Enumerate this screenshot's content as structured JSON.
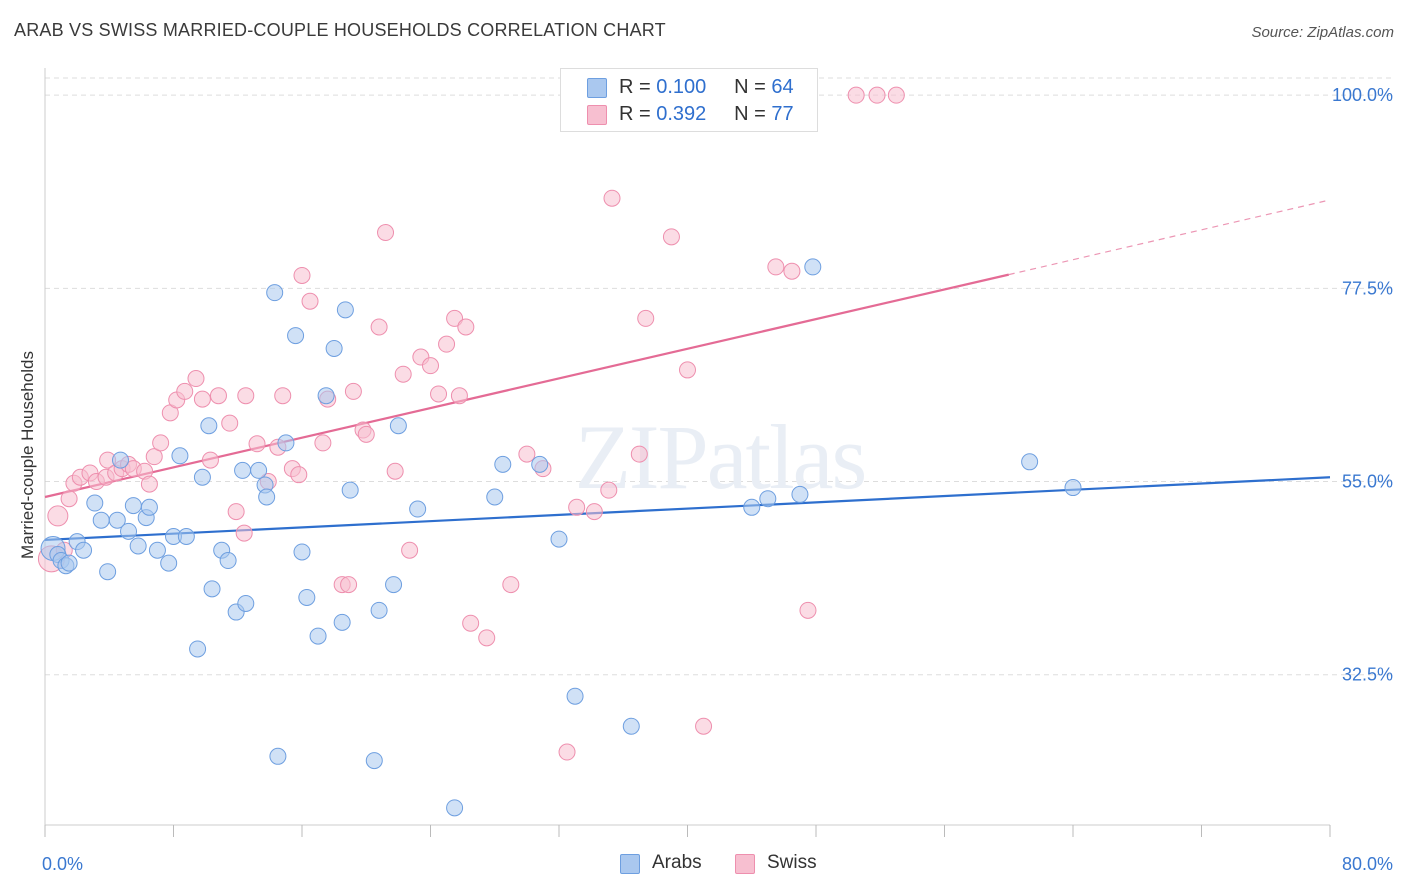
{
  "title": "ARAB VS SWISS MARRIED-COUPLE HOUSEHOLDS CORRELATION CHART",
  "source": "Source: ZipAtlas.com",
  "watermark": "ZIPatlas",
  "legend": {
    "arabs": {
      "r_label": "R =",
      "r_value": "0.100",
      "n_label": "N =",
      "n_value": "64"
    },
    "swiss": {
      "r_label": "R =",
      "r_value": "0.392",
      "n_label": "N =",
      "n_value": "77"
    }
  },
  "bottom_legend": {
    "arabs": "Arabs",
    "swiss": "Swiss"
  },
  "colors": {
    "arabs_fill": "#aac8ef",
    "arabs_stroke": "#6e9fe0",
    "arabs_line": "#2e6fce",
    "swiss_fill": "#f7bfd0",
    "swiss_stroke": "#ee8fae",
    "swiss_line": "#e46b95",
    "axis_label": "#3a78d0",
    "grid": "#dddddd"
  },
  "chart_data": {
    "type": "scatter",
    "title": "ARAB VS SWISS MARRIED-COUPLE HOUSEHOLDS CORRELATION CHART",
    "xlabel": "",
    "ylabel": "Married-couple Households",
    "xlim": [
      0,
      80
    ],
    "ylim": [
      15,
      102
    ],
    "x_tick_labels": [
      "0.0%",
      "80.0%"
    ],
    "y_ticks": [
      32.5,
      55.0,
      77.5,
      100.0
    ],
    "y_tick_labels": [
      "32.5%",
      "55.0%",
      "77.5%",
      "100.0%"
    ],
    "grid": true,
    "legend_position": "top-center",
    "series": [
      {
        "name": "Arabs",
        "r": 0.1,
        "n": 64,
        "trend": {
          "x": [
            0,
            80
          ],
          "y": [
            48.2,
            55.5
          ]
        },
        "points": [
          [
            0.5,
            47.2
          ],
          [
            0.8,
            46.5
          ],
          [
            1.0,
            45.8
          ],
          [
            1.3,
            45.2
          ],
          [
            1.5,
            45.5
          ],
          [
            2.0,
            48.0
          ],
          [
            2.4,
            47.0
          ],
          [
            3.1,
            52.5
          ],
          [
            3.5,
            50.5
          ],
          [
            3.9,
            44.5
          ],
          [
            4.5,
            50.5
          ],
          [
            4.7,
            57.5
          ],
          [
            5.2,
            49.2
          ],
          [
            5.5,
            52.2
          ],
          [
            5.8,
            47.5
          ],
          [
            6.3,
            50.8
          ],
          [
            6.5,
            52.0
          ],
          [
            7.0,
            47.0
          ],
          [
            7.7,
            45.5
          ],
          [
            8.0,
            48.6
          ],
          [
            8.4,
            58.0
          ],
          [
            8.8,
            48.6
          ],
          [
            9.5,
            35.5
          ],
          [
            9.8,
            55.5
          ],
          [
            10.2,
            61.5
          ],
          [
            10.4,
            42.5
          ],
          [
            11.0,
            47.0
          ],
          [
            11.4,
            45.8
          ],
          [
            11.9,
            39.8
          ],
          [
            12.3,
            56.3
          ],
          [
            12.5,
            40.8
          ],
          [
            13.3,
            56.3
          ],
          [
            13.7,
            54.6
          ],
          [
            13.8,
            53.2
          ],
          [
            14.3,
            77.0
          ],
          [
            14.5,
            23.0
          ],
          [
            15.0,
            59.5
          ],
          [
            15.6,
            72.0
          ],
          [
            16.0,
            46.8
          ],
          [
            16.3,
            41.5
          ],
          [
            17.0,
            37.0
          ],
          [
            17.5,
            65.0
          ],
          [
            18.0,
            70.5
          ],
          [
            18.5,
            38.6
          ],
          [
            18.7,
            75.0
          ],
          [
            19.0,
            54.0
          ],
          [
            20.5,
            22.5
          ],
          [
            20.8,
            40.0
          ],
          [
            21.7,
            43.0
          ],
          [
            22.0,
            61.5
          ],
          [
            23.2,
            51.8
          ],
          [
            28.0,
            53.2
          ],
          [
            28.5,
            57.0
          ],
          [
            30.8,
            57.0
          ],
          [
            32.0,
            48.3
          ],
          [
            33.0,
            30.0
          ],
          [
            36.5,
            26.5
          ],
          [
            44.0,
            52.0
          ],
          [
            45.0,
            53.0
          ],
          [
            47.0,
            53.5
          ],
          [
            47.8,
            80.0
          ],
          [
            61.3,
            57.3
          ],
          [
            64.0,
            54.3
          ],
          [
            25.5,
            17.0
          ]
        ]
      },
      {
        "name": "Swiss",
        "r": 0.392,
        "n": 77,
        "trend": {
          "x": [
            0,
            60
          ],
          "y": [
            53.2,
            79.1
          ],
          "dashed_to": {
            "x": 80,
            "y": 87.8
          }
        },
        "points": [
          [
            0.4,
            46.0
          ],
          [
            0.8,
            51.0
          ],
          [
            1.2,
            47.0
          ],
          [
            1.5,
            53.0
          ],
          [
            1.8,
            54.8
          ],
          [
            2.2,
            55.5
          ],
          [
            2.8,
            56.0
          ],
          [
            3.2,
            55.0
          ],
          [
            3.8,
            55.5
          ],
          [
            3.9,
            57.5
          ],
          [
            4.4,
            56.0
          ],
          [
            4.8,
            56.5
          ],
          [
            5.2,
            57.0
          ],
          [
            5.5,
            56.5
          ],
          [
            6.2,
            56.2
          ],
          [
            6.5,
            54.7
          ],
          [
            6.8,
            57.9
          ],
          [
            7.2,
            59.5
          ],
          [
            7.8,
            63.0
          ],
          [
            8.2,
            64.5
          ],
          [
            8.7,
            65.5
          ],
          [
            9.4,
            67.0
          ],
          [
            9.8,
            64.6
          ],
          [
            10.3,
            57.5
          ],
          [
            10.8,
            65.0
          ],
          [
            11.5,
            61.8
          ],
          [
            11.9,
            51.5
          ],
          [
            12.4,
            49.0
          ],
          [
            12.5,
            65.0
          ],
          [
            13.2,
            59.4
          ],
          [
            13.9,
            55.0
          ],
          [
            14.5,
            59.0
          ],
          [
            14.8,
            65.0
          ],
          [
            15.4,
            56.5
          ],
          [
            15.8,
            55.8
          ],
          [
            16.0,
            79.0
          ],
          [
            16.5,
            76.0
          ],
          [
            17.3,
            59.5
          ],
          [
            17.6,
            64.6
          ],
          [
            18.5,
            43.0
          ],
          [
            18.9,
            43.0
          ],
          [
            19.2,
            65.5
          ],
          [
            19.8,
            61.0
          ],
          [
            20.0,
            60.5
          ],
          [
            20.8,
            73.0
          ],
          [
            21.2,
            84.0
          ],
          [
            21.8,
            56.2
          ],
          [
            22.3,
            67.5
          ],
          [
            22.7,
            47.0
          ],
          [
            23.4,
            69.5
          ],
          [
            24.0,
            68.5
          ],
          [
            24.5,
            65.2
          ],
          [
            25.0,
            71.0
          ],
          [
            25.5,
            74.0
          ],
          [
            25.8,
            65.0
          ],
          [
            26.2,
            73.0
          ],
          [
            26.5,
            38.5
          ],
          [
            27.5,
            36.8
          ],
          [
            29.0,
            43.0
          ],
          [
            30.0,
            58.2
          ],
          [
            31.0,
            56.5
          ],
          [
            32.5,
            23.5
          ],
          [
            33.1,
            52.0
          ],
          [
            34.2,
            51.5
          ],
          [
            35.1,
            54.0
          ],
          [
            35.3,
            88.0
          ],
          [
            37.0,
            58.2
          ],
          [
            37.4,
            74.0
          ],
          [
            39.0,
            83.5
          ],
          [
            40.0,
            68.0
          ],
          [
            41.0,
            26.5
          ],
          [
            45.5,
            80.0
          ],
          [
            46.5,
            79.5
          ],
          [
            47.5,
            40.0
          ],
          [
            50.5,
            100.0
          ],
          [
            51.8,
            100.0
          ],
          [
            53.0,
            100.0
          ]
        ]
      }
    ]
  }
}
